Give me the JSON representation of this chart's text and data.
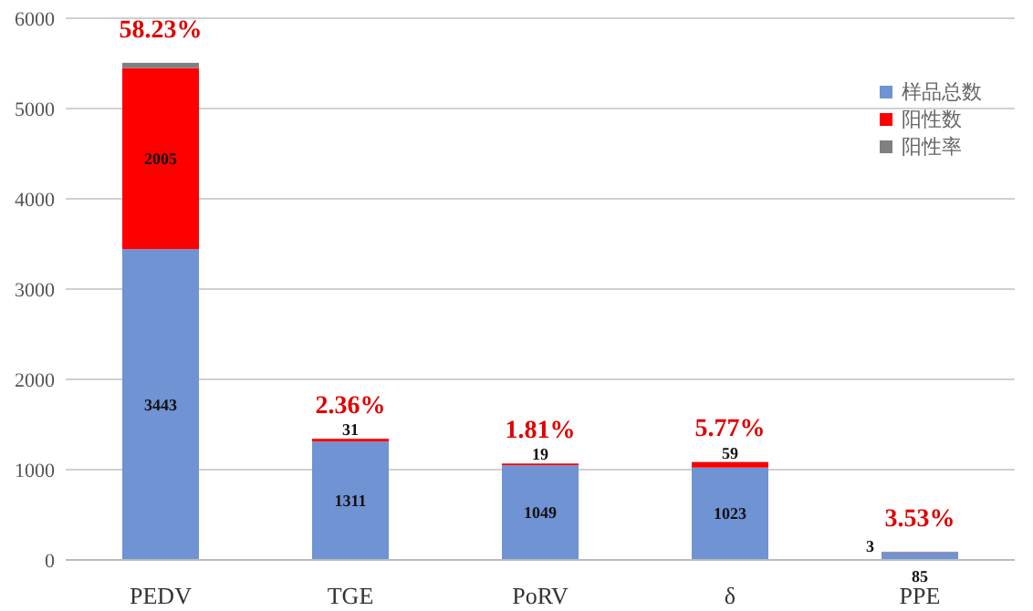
{
  "chart_data": {
    "type": "bar",
    "stacked": true,
    "categories": [
      "PEDV",
      "TGE",
      "PoRV",
      "δ",
      "PPE"
    ],
    "series": [
      {
        "name": "样品总数",
        "color": "#6f93d3",
        "values": [
          3443,
          1311,
          1049,
          1023,
          85
        ],
        "value_labels": [
          "3443",
          "1311",
          "1049",
          "1023",
          "85"
        ]
      },
      {
        "name": "阳性数",
        "color": "#ff0000",
        "values": [
          2005,
          31,
          19,
          59,
          3
        ],
        "value_labels": [
          "2005",
          "31",
          "19",
          "59",
          "3"
        ]
      },
      {
        "name": "阳性率",
        "color": "#808080",
        "values": [
          58.23,
          2.36,
          1.81,
          5.77,
          3.53
        ],
        "value_labels": [
          "58.23%",
          "2.36%",
          "1.81%",
          "5.77%",
          "3.53%"
        ]
      }
    ],
    "ylim": [
      0,
      6000
    ],
    "yticks": [
      0,
      1000,
      2000,
      3000,
      4000,
      5000,
      6000
    ],
    "grid": "y",
    "legend": "top right"
  }
}
